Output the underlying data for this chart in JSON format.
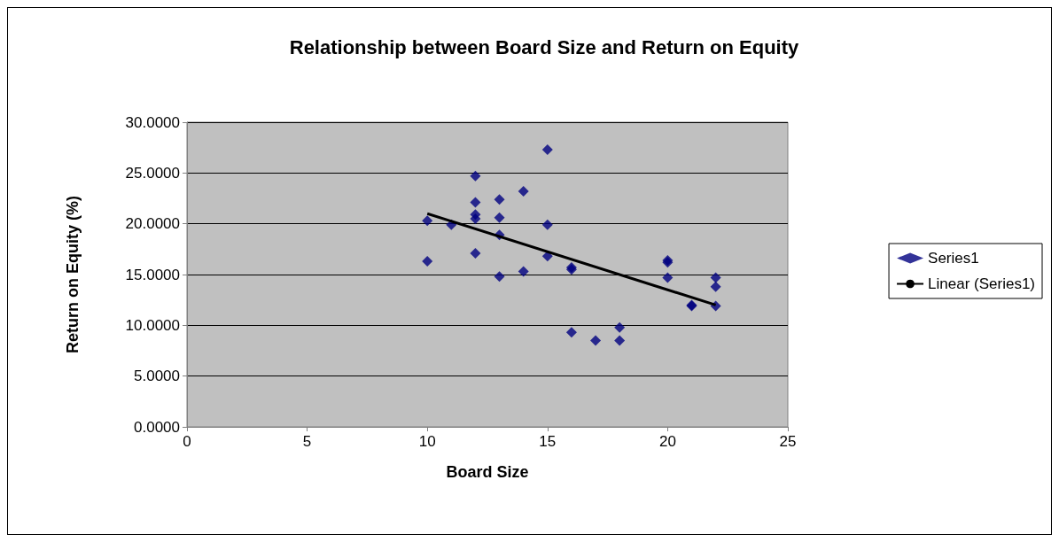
{
  "chart_data": {
    "type": "scatter",
    "title": "Relationship between Board Size and Return on Equity",
    "xlabel": "Board Size",
    "ylabel": "Return on Equity (%)",
    "xlim": [
      0,
      25
    ],
    "xticks": [
      0,
      5,
      10,
      15,
      20,
      25
    ],
    "ylim": [
      0,
      30
    ],
    "yticks": [
      {
        "value": 0,
        "label": "0.0000"
      },
      {
        "value": 5,
        "label": "5.0000"
      },
      {
        "value": 10,
        "label": "10.0000"
      },
      {
        "value": 15,
        "label": "15.0000"
      },
      {
        "value": 20,
        "label": "20.0000"
      },
      {
        "value": 25,
        "label": "25.0000"
      },
      {
        "value": 30,
        "label": "30.0000"
      }
    ],
    "grid": "y",
    "legend": "right",
    "marker": "diamond",
    "series": [
      {
        "name": "Series1",
        "color": "#000080",
        "x": [
          10,
          10,
          11,
          12,
          12,
          12,
          12,
          12,
          13,
          13,
          13,
          13,
          14,
          14,
          15,
          15,
          15,
          16,
          16,
          16,
          17,
          18,
          18,
          20,
          20,
          20,
          21,
          21,
          22,
          22,
          22
        ],
        "values": [
          20.3,
          16.3,
          19.9,
          24.7,
          22.1,
          20.9,
          20.5,
          17.1,
          22.4,
          20.6,
          18.9,
          14.8,
          23.2,
          15.3,
          27.3,
          19.9,
          16.8,
          15.7,
          15.5,
          9.3,
          8.5,
          9.8,
          8.5,
          16.4,
          16.2,
          14.7,
          12.0,
          11.9,
          14.7,
          13.8,
          11.9
        ]
      },
      {
        "name": "Linear (Series1)",
        "type": "line",
        "color": "#000000",
        "marker": "none",
        "x": [
          10,
          22
        ],
        "values": [
          21.0,
          12.0
        ]
      }
    ]
  }
}
